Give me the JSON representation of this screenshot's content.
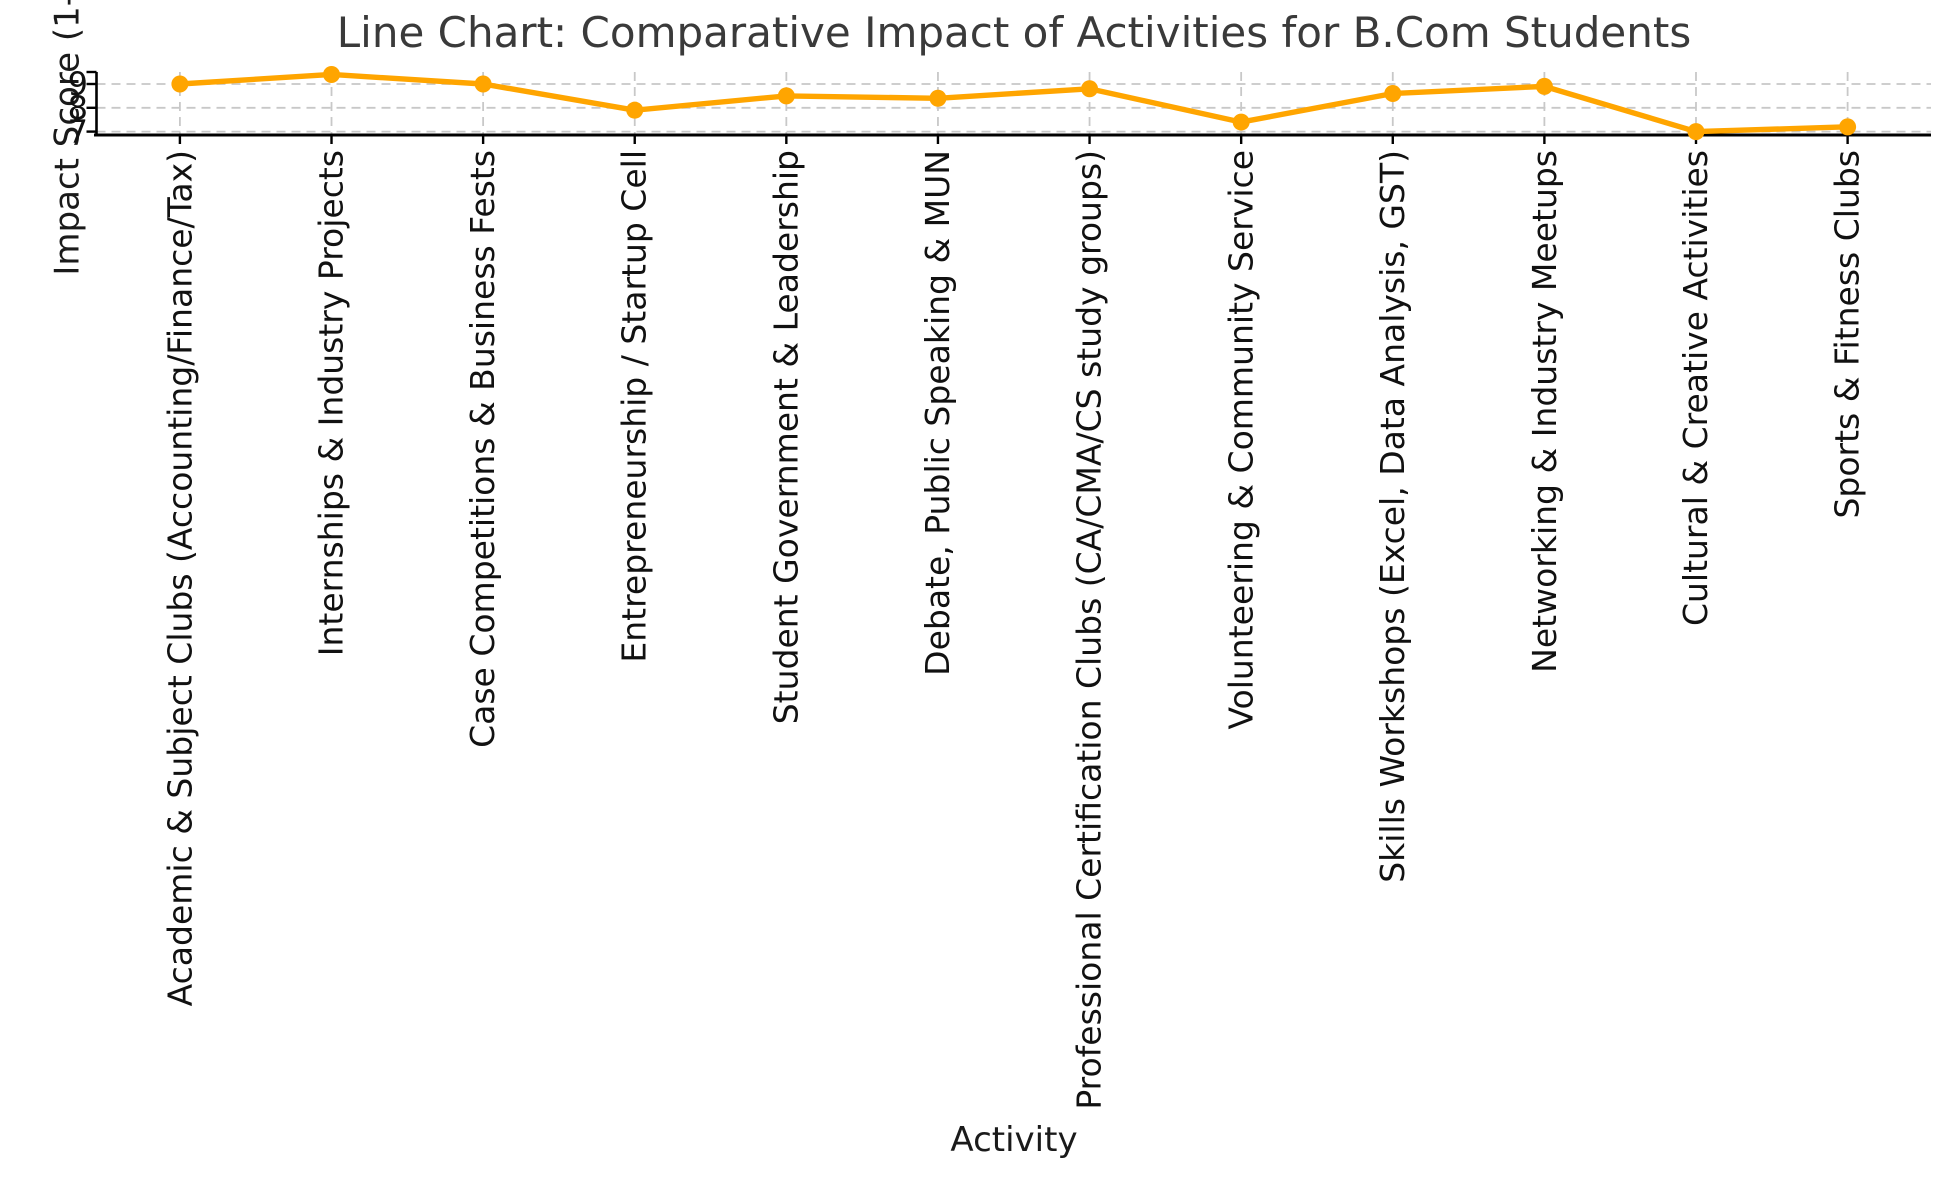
{
  "figure": {
    "title": "Line Chart: Comparative Impact of Activities for B.Com Students",
    "ylabel_visible": "Impact Score (1-",
    "xlabel": "Activity"
  },
  "chart_data": {
    "type": "line",
    "title": "Line Chart: Comparative Impact of Activities for B.Com Students",
    "xlabel": "Activity",
    "ylabel": "Impact Score (1-",
    "categories": [
      "Academic & Subject Clubs (Accounting/Finance/Tax)",
      "Internships & Industry Projects",
      "Case Competitions & Business Fests",
      "Entrepreneurship / Startup Cell",
      "Student Government & Leadership",
      "Debate, Public Speaking & MUN",
      "Professional Certification Clubs (CA/CMA/CS study groups)",
      "Volunteering & Community Service",
      "Skills Workshops (Excel, Data Analysis, GST)",
      "Networking & Industry Meetups",
      "Cultural & Creative Activities",
      "Sports & Fitness Clubs"
    ],
    "series": [
      {
        "name": "Impact Score",
        "values": [
          9.0,
          9.4,
          9.0,
          7.9,
          8.5,
          8.4,
          8.8,
          7.4,
          8.6,
          8.9,
          7.0,
          7.2
        ]
      }
    ],
    "yticks": [
      9,
      8,
      7
    ],
    "ylim": [
      6.86,
      9.5
    ],
    "grid": "dashed",
    "legend": "none",
    "colors": {
      "line": "#FFA500",
      "grid": "#c8c8c8",
      "spine": "#000000",
      "text": "#111111",
      "title": "#3a3a3a"
    }
  }
}
